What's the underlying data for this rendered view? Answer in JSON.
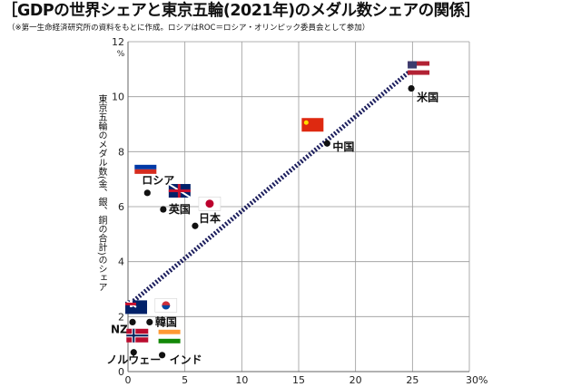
{
  "chart_data": {
    "type": "scatter",
    "title": "［GDPの世界シェアと東京五輪(2021年)のメダル数シェアの関係］",
    "subtitle": "（※第一生命経済研究所の資料をもとに作成。ロシアはROC＝ロシア・オリンピック委員会として参加）",
    "xlabel": "",
    "ylabel": "東京五輪のメダル数(金、銀、銅の合計)のシェア",
    "xlim": [
      0,
      30
    ],
    "ylim": [
      0,
      12
    ],
    "x_ticks": [
      "0",
      "5",
      "10",
      "15",
      "20",
      "30%"
    ],
    "x_tick_values": [
      0,
      5,
      10,
      15,
      20,
      30
    ],
    "x_tick_25": "25",
    "y_ticks": [
      "0",
      "2",
      "4",
      "6",
      "8",
      "10",
      "12"
    ],
    "y_unit": "%",
    "grid": true,
    "points": [
      {
        "label": "米国",
        "x": 24.9,
        "y": 10.3,
        "flag": [
          "#b22234",
          "#ffffff",
          "#3c3b6e"
        ]
      },
      {
        "label": "中国",
        "x": 17.5,
        "y": 8.3,
        "flag": [
          "#de2910",
          "#ffde00"
        ]
      },
      {
        "label": "ロシア",
        "x": 1.7,
        "y": 6.5,
        "flag": [
          "#ffffff",
          "#0039a6",
          "#d52b1e"
        ]
      },
      {
        "label": "英国",
        "x": 3.1,
        "y": 5.9,
        "flag": [
          "#012169",
          "#ffffff",
          "#c8102e"
        ]
      },
      {
        "label": "日本",
        "x": 5.9,
        "y": 5.3,
        "flag": [
          "#ffffff",
          "#bc002d"
        ]
      },
      {
        "label": "NZ",
        "x": 0.4,
        "y": 1.8,
        "flag": [
          "#012169",
          "#c8102e",
          "#ffffff"
        ]
      },
      {
        "label": "韓国",
        "x": 1.9,
        "y": 1.8,
        "flag": [
          "#ffffff",
          "#cd2e3a",
          "#0047a0"
        ]
      },
      {
        "label": "ノルウェー",
        "x": 0.5,
        "y": 0.7,
        "flag": [
          "#ba0c2f",
          "#ffffff",
          "#00205b"
        ]
      },
      {
        "label": "インド",
        "x": 3.0,
        "y": 0.6,
        "flag": [
          "#ff9933",
          "#ffffff",
          "#138808"
        ]
      }
    ],
    "trendline": {
      "x": [
        0,
        25
      ],
      "y": [
        2.4,
        11.0
      ],
      "color": "#1d1f5e"
    }
  }
}
